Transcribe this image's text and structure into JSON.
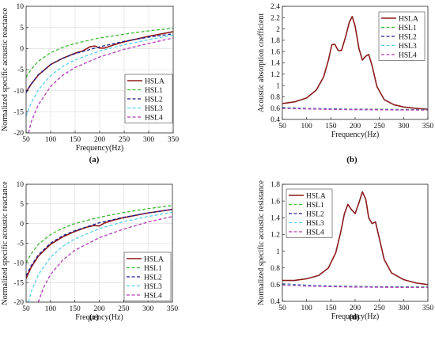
{
  "chart_data": [
    {
      "type": "line",
      "panel_label": "(a)",
      "xlabel": "Frequency(Hz)",
      "ylabel": "Normalized specific acoustic reactance",
      "xlim": [
        50,
        350
      ],
      "ylim": [
        -20,
        10
      ],
      "xticks": [
        50,
        100,
        150,
        200,
        250,
        300,
        350
      ],
      "yticks": [
        -20,
        -15,
        -10,
        -5,
        0,
        5,
        10
      ],
      "grid": true,
      "legend_position": "lower-right",
      "series": [
        {
          "name": "HSLA",
          "color": "#8b1a1a",
          "dash": "solid",
          "x": [
            50,
            60,
            75,
            100,
            125,
            150,
            165,
            180,
            190,
            200,
            210,
            230,
            250,
            300,
            350
          ],
          "y": [
            -10.3,
            -8.5,
            -6.3,
            -3.8,
            -2.3,
            -1.1,
            -0.6,
            0.4,
            0.6,
            0.1,
            0.1,
            0.9,
            1.6,
            2.9,
            4.0
          ]
        },
        {
          "name": "HSL1",
          "color": "#3cb831",
          "dash": "dashed",
          "x": [
            50,
            60,
            75,
            100,
            125,
            150,
            200,
            250,
            300,
            350
          ],
          "y": [
            -6.8,
            -5.0,
            -3.0,
            -1.0,
            0.3,
            1.2,
            2.5,
            3.4,
            4.2,
            4.8
          ]
        },
        {
          "name": "HSL2",
          "color": "#1f1f8f",
          "dash": "dashed",
          "x": [
            50,
            60,
            75,
            100,
            125,
            150,
            200,
            250,
            300,
            350
          ],
          "y": [
            -10.5,
            -8.5,
            -6.2,
            -3.8,
            -2.3,
            -1.2,
            0.4,
            1.7,
            2.7,
            3.5
          ]
        },
        {
          "name": "HSL3",
          "color": "#5bd0e8",
          "dash": "dashed",
          "x": [
            50,
            60,
            75,
            100,
            125,
            150,
            200,
            250,
            300,
            350
          ],
          "y": [
            -16.0,
            -13.0,
            -9.8,
            -6.4,
            -4.2,
            -2.7,
            -0.6,
            0.9,
            2.1,
            3.2
          ]
        },
        {
          "name": "HSL4",
          "color": "#b23bb5",
          "dash": "dashed",
          "x": [
            55,
            60,
            75,
            100,
            125,
            150,
            200,
            250,
            300,
            350
          ],
          "y": [
            -20.0,
            -17.5,
            -13.3,
            -9.0,
            -6.3,
            -4.5,
            -2.0,
            -0.2,
            1.2,
            2.5
          ]
        }
      ]
    },
    {
      "type": "line",
      "panel_label": "(b)",
      "xlabel": "Frequency(Hz)",
      "ylabel": "Acoustic absorption coefficient",
      "xlim": [
        50,
        350
      ],
      "ylim": [
        0.4,
        2.4
      ],
      "xticks": [
        50,
        100,
        150,
        200,
        250,
        300,
        350
      ],
      "yticks": [
        0.4,
        0.6,
        0.8,
        1,
        1.2,
        1.4,
        1.6,
        1.8,
        2,
        2.2,
        2.4
      ],
      "grid": false,
      "legend_position": "top-right",
      "series": [
        {
          "name": "HSLA",
          "color": "#8b1a1a",
          "dash": "solid",
          "x": [
            50,
            75,
            100,
            120,
            135,
            145,
            152,
            158,
            165,
            172,
            180,
            188,
            194,
            200,
            208,
            215,
            222,
            228,
            235,
            245,
            260,
            280,
            300,
            320,
            350
          ],
          "y": [
            0.68,
            0.71,
            0.78,
            0.92,
            1.15,
            1.45,
            1.72,
            1.73,
            1.62,
            1.62,
            1.85,
            2.12,
            2.22,
            2.05,
            1.65,
            1.45,
            1.52,
            1.55,
            1.35,
            0.98,
            0.75,
            0.66,
            0.62,
            0.6,
            0.58
          ]
        },
        {
          "name": "HSL1",
          "color": "#3cb831",
          "dash": "dashed",
          "x": [
            50,
            100,
            150,
            200,
            250,
            300,
            350
          ],
          "y": [
            0.6,
            0.59,
            0.585,
            0.58,
            0.58,
            0.575,
            0.575
          ]
        },
        {
          "name": "HSL2",
          "color": "#1f1f8f",
          "dash": "dashed",
          "x": [
            50,
            100,
            150,
            200,
            250,
            300,
            350
          ],
          "y": [
            0.61,
            0.595,
            0.585,
            0.58,
            0.575,
            0.57,
            0.57
          ]
        },
        {
          "name": "HSL3",
          "color": "#5bd0e8",
          "dash": "dashed",
          "x": [
            50,
            100,
            150,
            200,
            250,
            300,
            350
          ],
          "y": [
            0.605,
            0.59,
            0.58,
            0.575,
            0.57,
            0.568,
            0.567
          ]
        },
        {
          "name": "HSL4",
          "color": "#b23bb5",
          "dash": "dashed",
          "x": [
            50,
            100,
            150,
            200,
            250,
            300,
            350
          ],
          "y": [
            0.595,
            0.585,
            0.578,
            0.572,
            0.57,
            0.568,
            0.566
          ]
        }
      ]
    },
    {
      "type": "line",
      "panel_label": "(c)",
      "xlabel": "Frequency(Hz)",
      "ylabel": "Normalized specific acoustic reactance",
      "xlim": [
        50,
        350
      ],
      "ylim": [
        -20,
        10
      ],
      "xticks": [
        50,
        100,
        150,
        200,
        250,
        300,
        350
      ],
      "yticks": [
        -20,
        -15,
        -10,
        -5,
        0,
        5,
        10
      ],
      "grid": true,
      "legend_position": "lower-right",
      "series": [
        {
          "name": "HSLA",
          "color": "#8b1a1a",
          "dash": "solid",
          "x": [
            50,
            60,
            75,
            100,
            125,
            150,
            175,
            190,
            200,
            210,
            230,
            250,
            300,
            350
          ],
          "y": [
            -14.0,
            -11.2,
            -8.3,
            -5.3,
            -3.4,
            -2.0,
            -0.9,
            -0.5,
            -0.6,
            0.1,
            0.9,
            1.5,
            2.7,
            3.6
          ]
        },
        {
          "name": "HSL1",
          "color": "#3cb831",
          "dash": "dashed",
          "x": [
            50,
            60,
            75,
            100,
            125,
            150,
            200,
            250,
            300,
            350
          ],
          "y": [
            -10.0,
            -7.8,
            -5.3,
            -2.8,
            -1.2,
            0.0,
            1.6,
            2.8,
            3.8,
            4.6
          ]
        },
        {
          "name": "HSL2",
          "color": "#1f1f8f",
          "dash": "dashed",
          "x": [
            50,
            60,
            75,
            100,
            125,
            150,
            200,
            250,
            300,
            350
          ],
          "y": [
            -13.3,
            -10.8,
            -8.0,
            -5.0,
            -3.1,
            -1.8,
            0.2,
            1.6,
            2.7,
            3.6
          ]
        },
        {
          "name": "HSL3",
          "color": "#5bd0e8",
          "dash": "dashed",
          "x": [
            55,
            60,
            75,
            100,
            125,
            150,
            200,
            250,
            300,
            350
          ],
          "y": [
            -20.0,
            -17.5,
            -13.0,
            -8.6,
            -5.8,
            -3.9,
            -1.3,
            0.5,
            1.8,
            2.9
          ]
        },
        {
          "name": "HSL4",
          "color": "#b23bb5",
          "dash": "dashed",
          "x": [
            75,
            85,
            100,
            125,
            150,
            200,
            250,
            300,
            350
          ],
          "y": [
            -20.0,
            -16.5,
            -13.0,
            -9.3,
            -6.8,
            -3.6,
            -1.4,
            0.4,
            1.8
          ]
        }
      ]
    },
    {
      "type": "line",
      "panel_label": "(d)",
      "xlabel": "Frequency(Hz)",
      "ylabel": "Normalized specific acoustic resistance",
      "xlim": [
        50,
        350
      ],
      "ylim": [
        0.4,
        1.8
      ],
      "xticks": [
        50,
        100,
        150,
        200,
        250,
        300,
        350
      ],
      "yticks": [
        0.4,
        0.6,
        0.8,
        1,
        1.2,
        1.4,
        1.6,
        1.8
      ],
      "grid": false,
      "legend_position": "top-left",
      "series": [
        {
          "name": "HSLA",
          "color": "#8b1a1a",
          "dash": "solid",
          "x": [
            50,
            75,
            100,
            125,
            145,
            160,
            170,
            178,
            185,
            192,
            200,
            208,
            215,
            222,
            228,
            235,
            242,
            250,
            260,
            275,
            300,
            325,
            350
          ],
          "y": [
            0.65,
            0.65,
            0.67,
            0.71,
            0.8,
            0.98,
            1.22,
            1.45,
            1.56,
            1.5,
            1.45,
            1.58,
            1.71,
            1.62,
            1.4,
            1.33,
            1.35,
            1.15,
            0.9,
            0.74,
            0.66,
            0.62,
            0.6
          ]
        },
        {
          "name": "HSL1",
          "color": "#3cb831",
          "dash": "dashed",
          "x": [
            50,
            100,
            150,
            200,
            250,
            300,
            350
          ],
          "y": [
            0.6,
            0.59,
            0.583,
            0.578,
            0.575,
            0.573,
            0.572
          ]
        },
        {
          "name": "HSL2",
          "color": "#1f1f8f",
          "dash": "dashed",
          "x": [
            50,
            100,
            150,
            200,
            250,
            300,
            350
          ],
          "y": [
            0.61,
            0.592,
            0.582,
            0.577,
            0.573,
            0.571,
            0.57
          ]
        },
        {
          "name": "HSL3",
          "color": "#5bd0e8",
          "dash": "dashed",
          "x": [
            50,
            100,
            150,
            200,
            250,
            300,
            350
          ],
          "y": [
            0.605,
            0.588,
            0.579,
            0.574,
            0.571,
            0.569,
            0.568
          ]
        },
        {
          "name": "HSL4",
          "color": "#b23bb5",
          "dash": "dashed",
          "x": [
            50,
            100,
            150,
            200,
            250,
            300,
            350
          ],
          "y": [
            0.595,
            0.583,
            0.576,
            0.571,
            0.569,
            0.567,
            0.566
          ]
        }
      ]
    }
  ]
}
